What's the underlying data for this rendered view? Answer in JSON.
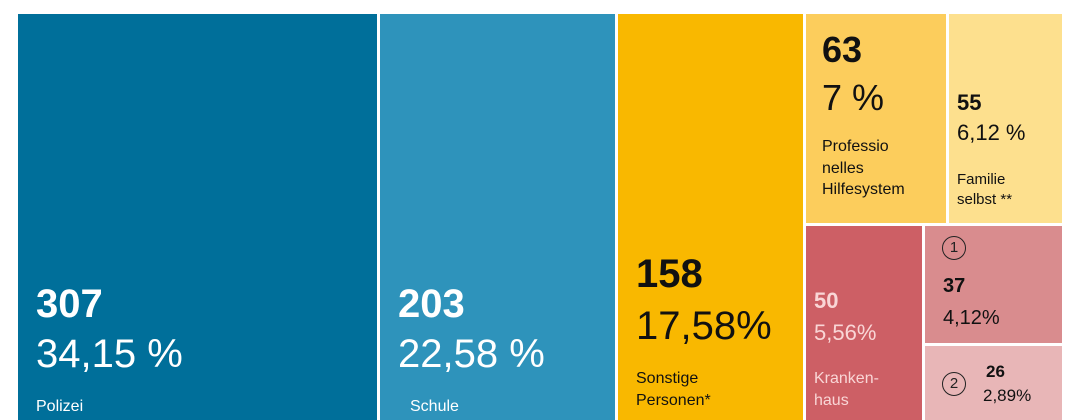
{
  "chart_data": {
    "type": "treemap",
    "categories": [
      "Polizei",
      "Schule",
      "Sonstige\nPersonen*",
      "Professio\nnelles\nHilfesystem",
      "Familie\nselbst **",
      "Kranken-\nhaus",
      null,
      null
    ],
    "markers": [
      null,
      null,
      null,
      null,
      null,
      null,
      "1",
      "2"
    ],
    "values": [
      307,
      203,
      158,
      63,
      55,
      50,
      37,
      26
    ],
    "shares": [
      34.15,
      22.58,
      17.58,
      7,
      6.12,
      5.56,
      4.12,
      2.89
    ],
    "share_labels": [
      "34,15 %",
      "22,58 %",
      "17,58%",
      "7 %",
      "6,12 %",
      "5,56%",
      "4,12%",
      "2,89%"
    ],
    "colors": [
      "#006f9a",
      "#2e93bb",
      "#f9b800",
      "#fccd5c",
      "#fde08e",
      "#cd5f65",
      "#d98c8e",
      "#e8b6b7"
    ]
  }
}
